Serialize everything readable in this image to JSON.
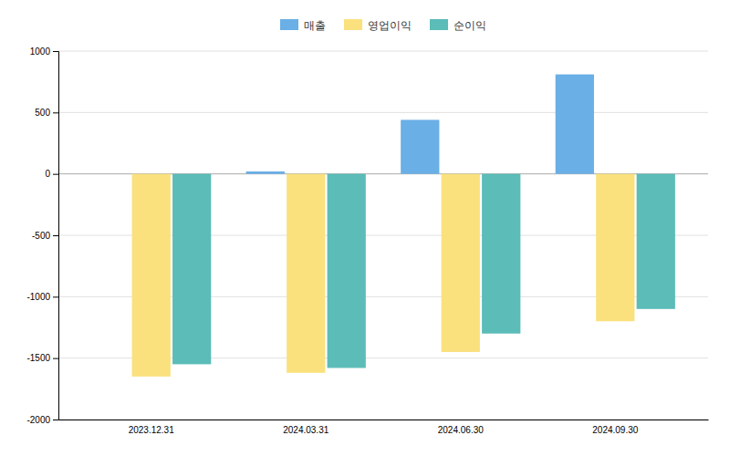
{
  "chart_data": {
    "type": "bar",
    "categories": [
      "2023.12.31",
      "2024.03.31",
      "2024.06.30",
      "2024.09.30"
    ],
    "series": [
      {
        "name": "매출",
        "color": "#6AAFE6",
        "values": [
          0,
          20,
          440,
          810
        ]
      },
      {
        "name": "영업이익",
        "color": "#FAE17D",
        "values": [
          -1650,
          -1620,
          -1450,
          -1200
        ]
      },
      {
        "name": "순이익",
        "color": "#5BBCB8",
        "values": [
          -1550,
          -1580,
          -1300,
          -1100
        ]
      }
    ],
    "ylim": [
      -2000,
      1000
    ],
    "yticks": [
      -2000,
      -1500,
      -1000,
      -500,
      0,
      500,
      1000
    ],
    "grid": true,
    "legend": "top"
  }
}
